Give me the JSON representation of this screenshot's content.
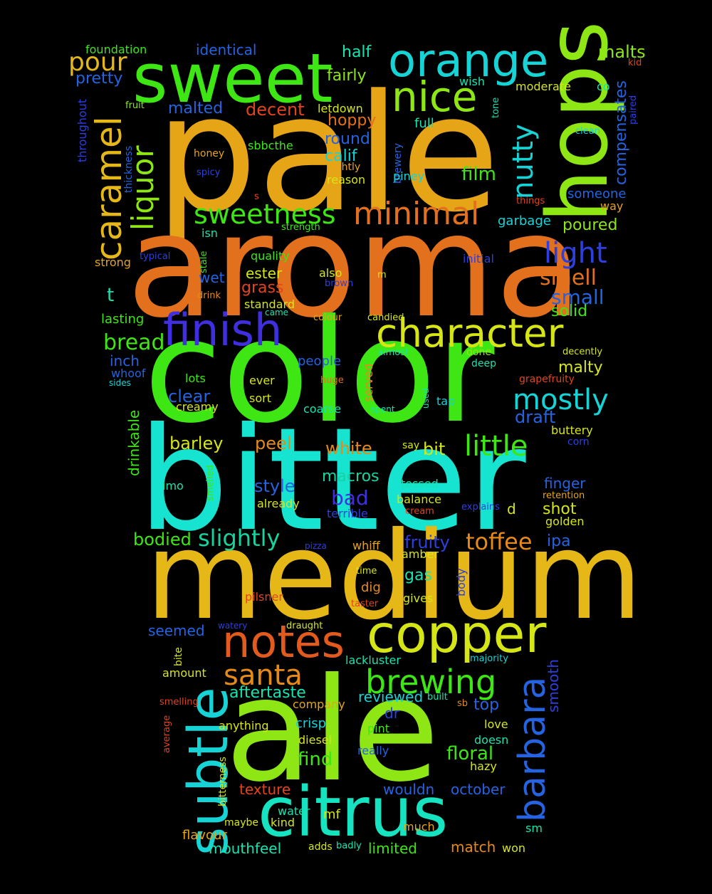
{
  "background": "#000000",
  "words": [
    {
      "text": "pale",
      "color": "#e6a417"
    },
    {
      "text": "aroma",
      "color": "#e2701c"
    },
    {
      "text": "color",
      "color": "#3ee614"
    },
    {
      "text": "bitter",
      "color": "#16e3d0"
    },
    {
      "text": "medium",
      "color": "#e6b817"
    },
    {
      "text": "ale",
      "color": "#8ee614"
    },
    {
      "text": "sweet",
      "color": "#3ee614"
    },
    {
      "text": "hops",
      "color": "#8ee614"
    },
    {
      "text": "orange",
      "color": "#16d3d6"
    },
    {
      "text": "nice",
      "color": "#8ee614"
    },
    {
      "text": "copper",
      "color": "#d6e614"
    },
    {
      "text": "citrus",
      "color": "#16e3c0"
    },
    {
      "text": "subtle",
      "color": "#16d3d6"
    },
    {
      "text": "notes",
      "color": "#e25a1c"
    },
    {
      "text": "finish",
      "color": "#3f2fe0"
    },
    {
      "text": "character",
      "color": "#d6e614"
    },
    {
      "text": "minimal",
      "color": "#e2701c"
    },
    {
      "text": "sweetness",
      "color": "#3ee614"
    },
    {
      "text": "caramel",
      "color": "#e6b817"
    },
    {
      "text": "liquor",
      "color": "#8ee614"
    },
    {
      "text": "nutty",
      "color": "#16d3d6"
    },
    {
      "text": "barbara",
      "color": "#2563e0"
    },
    {
      "text": "brewing",
      "color": "#3ee614"
    },
    {
      "text": "santa",
      "color": "#e68a17"
    },
    {
      "text": "light",
      "color": "#2d3fe0"
    },
    {
      "text": "little",
      "color": "#3ee614"
    },
    {
      "text": "mostly",
      "color": "#16d3d6"
    },
    {
      "text": "pour",
      "color": "#e6b817"
    },
    {
      "text": "slightly",
      "color": "#16d3a0"
    },
    {
      "text": "toffee",
      "color": "#e68a17"
    },
    {
      "text": "bread",
      "color": "#3ee614"
    },
    {
      "text": "smell",
      "color": "#e2701c"
    },
    {
      "text": "small",
      "color": "#2563e0"
    },
    {
      "text": "malts",
      "color": "#8ee614"
    },
    {
      "text": "compensates",
      "color": "#2563e0"
    },
    {
      "text": "identical",
      "color": "#2563e0"
    },
    {
      "text": "half",
      "color": "#16e3b0"
    },
    {
      "text": "foundation",
      "color": "#3ee614"
    },
    {
      "text": "pretty",
      "color": "#2563e0"
    },
    {
      "text": "throughout",
      "color": "#2d3fe0"
    },
    {
      "text": "fairly",
      "color": "#8ee614"
    },
    {
      "text": "malted",
      "color": "#2563e0"
    },
    {
      "text": "decent",
      "color": "#e2441c"
    },
    {
      "text": "hoppy",
      "color": "#e2701c"
    },
    {
      "text": "round",
      "color": "#2563e0"
    },
    {
      "text": "calif",
      "color": "#16d3d6"
    },
    {
      "text": "film",
      "color": "#3ee614"
    },
    {
      "text": "sbbcthe",
      "color": "#3ee614"
    },
    {
      "text": "letdown",
      "color": "#d6e614"
    },
    {
      "text": "full",
      "color": "#16e3b0"
    },
    {
      "text": "moderate",
      "color": "#d6e614"
    },
    {
      "text": "wish",
      "color": "#16e3b0"
    },
    {
      "text": "co",
      "color": "#16e3b0"
    },
    {
      "text": "kid",
      "color": "#e2441c"
    },
    {
      "text": "paired",
      "color": "#2d3fe0"
    },
    {
      "text": "clean",
      "color": "#16d3d6"
    },
    {
      "text": "tone",
      "color": "#16e3b0"
    },
    {
      "text": "brewery",
      "color": "#2563e0"
    },
    {
      "text": "fruit",
      "color": "#8ee614"
    },
    {
      "text": "thickness",
      "color": "#2563e0"
    },
    {
      "text": "honey",
      "color": "#e6a417"
    },
    {
      "text": "spicy",
      "color": "#2d3fe0"
    },
    {
      "text": "lightly",
      "color": "#e6a417"
    },
    {
      "text": "reason",
      "color": "#d6e614"
    },
    {
      "text": "piney",
      "color": "#16d3d6"
    },
    {
      "text": "someone",
      "color": "#2563e0"
    },
    {
      "text": "things",
      "color": "#e2441c"
    },
    {
      "text": "way",
      "color": "#e6a417"
    },
    {
      "text": "garbage",
      "color": "#16d3d6"
    },
    {
      "text": "poured",
      "color": "#8ee614"
    },
    {
      "text": "s",
      "color": "#e2441c"
    },
    {
      "text": "isn",
      "color": "#16e3b0"
    },
    {
      "text": "strength",
      "color": "#3ee614"
    },
    {
      "text": "typical",
      "color": "#2d3fe0"
    },
    {
      "text": "stale",
      "color": "#3ee614"
    },
    {
      "text": "quality",
      "color": "#3ee614"
    },
    {
      "text": "strong",
      "color": "#e6a417"
    },
    {
      "text": "initial",
      "color": "#2d3fe0"
    },
    {
      "text": "wet",
      "color": "#2563e0"
    },
    {
      "text": "ester",
      "color": "#d6e614"
    },
    {
      "text": "also",
      "color": "#d6e614"
    },
    {
      "text": "brown",
      "color": "#2d3fe0"
    },
    {
      "text": "m",
      "color": "#d6e614"
    },
    {
      "text": "grass",
      "color": "#e2441c"
    },
    {
      "text": "t",
      "color": "#16e3b0"
    },
    {
      "text": "drink",
      "color": "#e68a17"
    },
    {
      "text": "standard",
      "color": "#d6e614"
    },
    {
      "text": "came",
      "color": "#16e3b0"
    },
    {
      "text": "lasting",
      "color": "#3ee614"
    },
    {
      "text": "colour",
      "color": "#e6a417"
    },
    {
      "text": "candied",
      "color": "#d6e614"
    },
    {
      "text": "solid",
      "color": "#3ee614"
    },
    {
      "text": "inch",
      "color": "#2563e0"
    },
    {
      "text": "people",
      "color": "#2563e0"
    },
    {
      "text": "almost",
      "color": "#16e3b0"
    },
    {
      "text": "done",
      "color": "#8ee614"
    },
    {
      "text": "decently",
      "color": "#d6e614"
    },
    {
      "text": "whoof",
      "color": "#2563e0"
    },
    {
      "text": "sides",
      "color": "#16d3d6"
    },
    {
      "text": "lots",
      "color": "#3ee614"
    },
    {
      "text": "ever",
      "color": "#d6e614"
    },
    {
      "text": "served",
      "color": "#e68a17"
    },
    {
      "text": "deep",
      "color": "#16e3b0"
    },
    {
      "text": "malty",
      "color": "#d6e614"
    },
    {
      "text": "grapefruity",
      "color": "#e2441c"
    },
    {
      "text": "huge",
      "color": "#e2701c"
    },
    {
      "text": "clear",
      "color": "#2563e0"
    },
    {
      "text": "drinkable",
      "color": "#3ee614"
    },
    {
      "text": "creamy",
      "color": "#d6e614"
    },
    {
      "text": "sort",
      "color": "#d6e614"
    },
    {
      "text": "coarse",
      "color": "#16e3b0"
    },
    {
      "text": "spent",
      "color": "#16e3b0"
    },
    {
      "text": "used",
      "color": "#16e3b0"
    },
    {
      "text": "tap",
      "color": "#16d3d6"
    },
    {
      "text": "draft",
      "color": "#2563e0"
    },
    {
      "text": "buttery",
      "color": "#d6e614"
    },
    {
      "text": "barley",
      "color": "#d6e614"
    },
    {
      "text": "peel",
      "color": "#e68a17"
    },
    {
      "text": "white",
      "color": "#e68a17"
    },
    {
      "text": "bit",
      "color": "#d6e614"
    },
    {
      "text": "say",
      "color": "#d6e614"
    },
    {
      "text": "corn",
      "color": "#2d3fe0"
    },
    {
      "text": "macros",
      "color": "#16d3a0"
    },
    {
      "text": "style",
      "color": "#2563e0"
    },
    {
      "text": "bad",
      "color": "#3f2fe0"
    },
    {
      "text": "imo",
      "color": "#16e3b0"
    },
    {
      "text": "smelled",
      "color": "#3ee614"
    },
    {
      "text": "already",
      "color": "#d6e614"
    },
    {
      "text": "tossed",
      "color": "#16e3b0"
    },
    {
      "text": "balance",
      "color": "#d6e614"
    },
    {
      "text": "finger",
      "color": "#2563e0"
    },
    {
      "text": "retention",
      "color": "#e6a417"
    },
    {
      "text": "explains",
      "color": "#2d3fe0"
    },
    {
      "text": "d",
      "color": "#d6e614"
    },
    {
      "text": "terrible",
      "color": "#2d3fe0"
    },
    {
      "text": "cream",
      "color": "#e2441c"
    },
    {
      "text": "shot",
      "color": "#d6e614"
    },
    {
      "text": "golden",
      "color": "#d6e614"
    },
    {
      "text": "bodied",
      "color": "#3ee614"
    },
    {
      "text": "fruity",
      "color": "#2d3fe0"
    },
    {
      "text": "ipa",
      "color": "#2563e0"
    },
    {
      "text": "pizza",
      "color": "#2d3fe0"
    },
    {
      "text": "whiff",
      "color": "#e6a417"
    },
    {
      "text": "amber",
      "color": "#d6e614"
    },
    {
      "text": "time",
      "color": "#d6e614"
    },
    {
      "text": "gas",
      "color": "#16e3b0"
    },
    {
      "text": "body",
      "color": "#2d3fe0"
    },
    {
      "text": "dig",
      "color": "#e68a17"
    },
    {
      "text": "gives",
      "color": "#d6e614"
    },
    {
      "text": "pilsner",
      "color": "#e2441c"
    },
    {
      "text": "taster",
      "color": "#e2441c"
    },
    {
      "text": "seemed",
      "color": "#2563e0"
    },
    {
      "text": "watery",
      "color": "#2d3fe0"
    },
    {
      "text": "draught",
      "color": "#d6e614"
    },
    {
      "text": "smooth",
      "color": "#2d3fe0"
    },
    {
      "text": "bite",
      "color": "#d6e614"
    },
    {
      "text": "lackluster",
      "color": "#16e3b0"
    },
    {
      "text": "majority",
      "color": "#16d3d6"
    },
    {
      "text": "amount",
      "color": "#d6e614"
    },
    {
      "text": "aftertaste",
      "color": "#16e3b0"
    },
    {
      "text": "reviewed",
      "color": "#16d3d6"
    },
    {
      "text": "built",
      "color": "#16e3b0"
    },
    {
      "text": "top",
      "color": "#2563e0"
    },
    {
      "text": "smelling",
      "color": "#e2441c"
    },
    {
      "text": "company",
      "color": "#e6a417"
    },
    {
      "text": "sb",
      "color": "#e68a17"
    },
    {
      "text": "average",
      "color": "#e2441c"
    },
    {
      "text": "anything",
      "color": "#d6e614"
    },
    {
      "text": "crisp",
      "color": "#16d3d6"
    },
    {
      "text": "dr",
      "color": "#2d3fe0"
    },
    {
      "text": "pint",
      "color": "#3ee614"
    },
    {
      "text": "love",
      "color": "#d6e614"
    },
    {
      "text": "bitterness",
      "color": "#d6e614"
    },
    {
      "text": "diesel",
      "color": "#d6e614"
    },
    {
      "text": "doesn",
      "color": "#16e3b0"
    },
    {
      "text": "really",
      "color": "#2563e0"
    },
    {
      "text": "find",
      "color": "#3ee614"
    },
    {
      "text": "floral",
      "color": "#3ee614"
    },
    {
      "text": "hazy",
      "color": "#d6e614"
    },
    {
      "text": "texture",
      "color": "#e2441c"
    },
    {
      "text": "wouldn",
      "color": "#2563e0"
    },
    {
      "text": "october",
      "color": "#2563e0"
    },
    {
      "text": "water",
      "color": "#16e3b0"
    },
    {
      "text": "maybe",
      "color": "#d6e614"
    },
    {
      "text": "kind",
      "color": "#d6e614"
    },
    {
      "text": "mf",
      "color": "#d6e614"
    },
    {
      "text": "much",
      "color": "#e6a417"
    },
    {
      "text": "sm",
      "color": "#16e3b0"
    },
    {
      "text": "flavour",
      "color": "#e6a417"
    },
    {
      "text": "mouthfeel",
      "color": "#16e3b0"
    },
    {
      "text": "adds",
      "color": "#d6e614"
    },
    {
      "text": "badly",
      "color": "#16e3b0"
    },
    {
      "text": "limited",
      "color": "#3ee614"
    },
    {
      "text": "match",
      "color": "#e68a17"
    },
    {
      "text": "won",
      "color": "#d6e614"
    }
  ]
}
